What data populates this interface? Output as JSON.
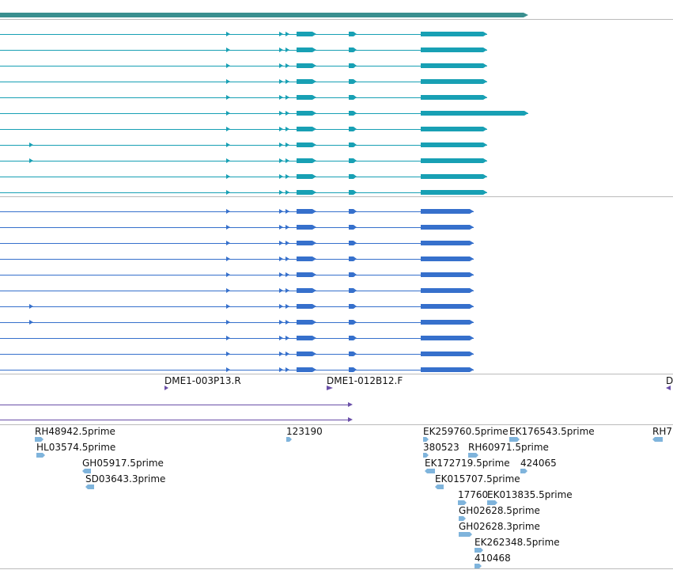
{
  "colors": {
    "gene": "#3a8f8f",
    "transcripts": "#18a0b4",
    "cds": "#3670cc",
    "primer": "#6a4fa8",
    "est": "#7fb4dc",
    "divider": "#bbbbbb"
  },
  "tracks": {
    "primers": {
      "labels": [
        "DME1-003P13.R",
        "DME1-012B12.F",
        "D"
      ]
    },
    "ests": {
      "labels": [
        "RH48942.5prime",
        "HL03574.5prime",
        "GH05917.5prime",
        "SD03643.3prime",
        "123190",
        "EK259760.5prime",
        "EK176543.5prime",
        "RH7",
        "380523",
        "RH60971.5prime",
        "EK172719.5prime",
        "424065",
        "EK015707.5prime",
        "17760",
        "EK013835.5prime",
        "GH02628.5prime",
        "GH02628.3prime",
        "EK262348.5prime",
        "410468"
      ]
    }
  }
}
